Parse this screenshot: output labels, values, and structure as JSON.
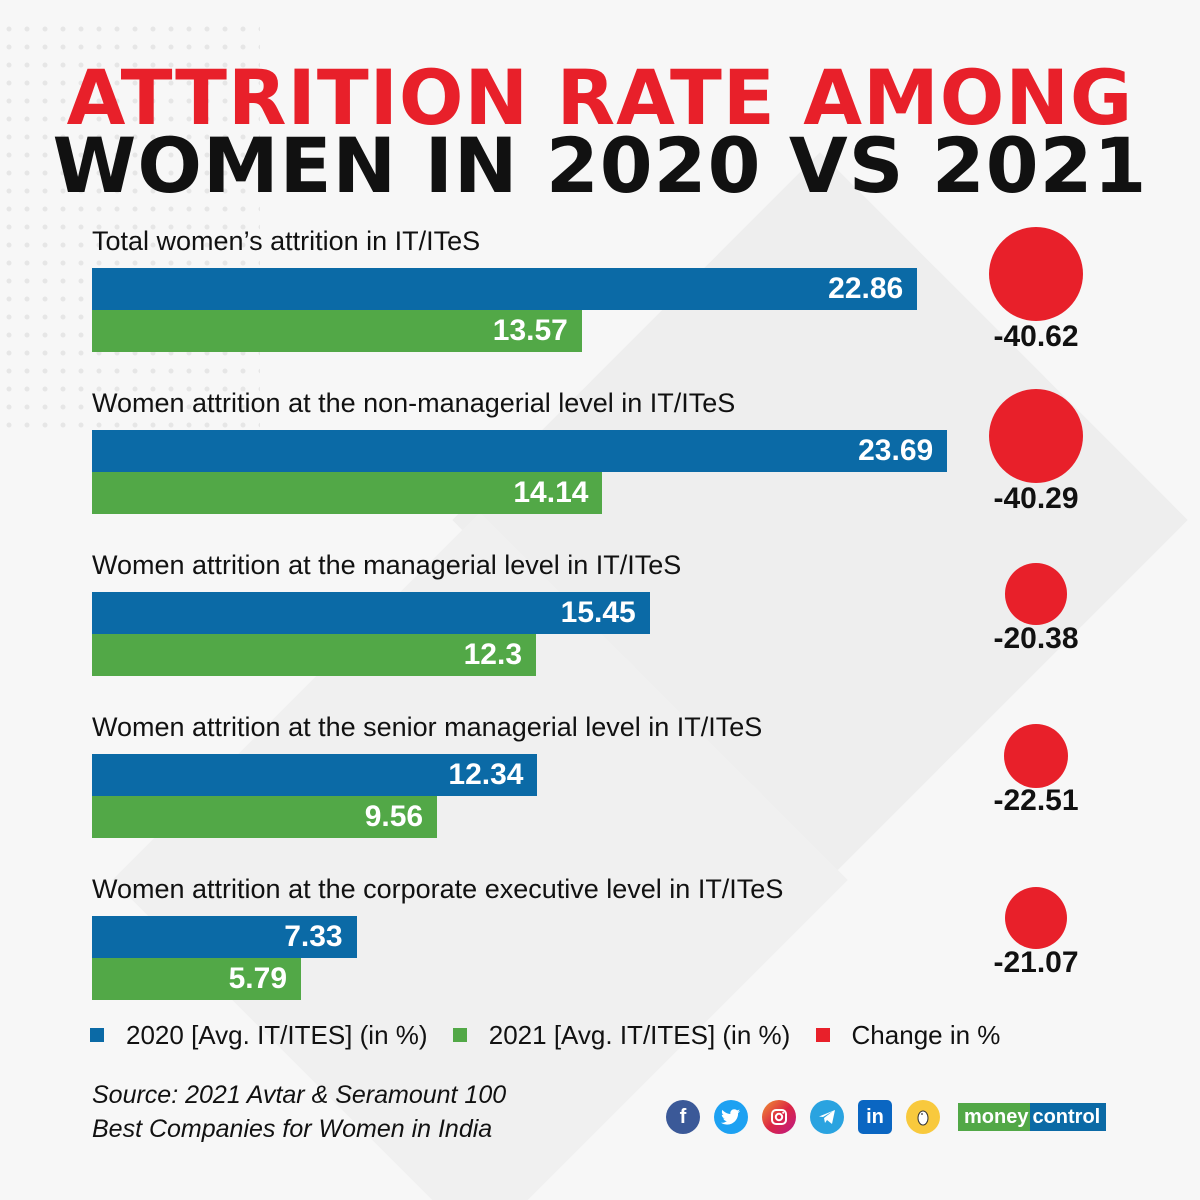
{
  "header": {
    "title_line1": "ATTRITION RATE AMONG",
    "title_line2": "WOMEN IN 2020 VS 2021"
  },
  "colors": {
    "series_2020": "#0b6aa6",
    "series_2021": "#52a847",
    "change": "#e8202a",
    "title_red": "#e8202a"
  },
  "chart_data": {
    "type": "bar",
    "orientation": "horizontal",
    "title": "ATTRITION RATE AMONG WOMEN IN 2020 VS 2021",
    "categories": [
      "Total women’s attrition in IT/ITeS",
      "Women attrition at the non-managerial level in IT/ITeS",
      "Women attrition at the managerial level in IT/ITeS",
      "Women attrition at the senior managerial level in IT/ITeS",
      "Women attrition at the corporate executive level in IT/ITeS"
    ],
    "series": [
      {
        "name": "2020  [Avg. IT/ITES] (in %)",
        "values": [
          22.86,
          23.69,
          15.45,
          12.34,
          7.33
        ]
      },
      {
        "name": "2021  [Avg. IT/ITES] (in %)",
        "values": [
          13.57,
          14.14,
          12.3,
          9.56,
          5.79
        ]
      },
      {
        "name": "Change in %",
        "values": [
          -40.62,
          -40.29,
          -20.38,
          -22.51,
          -21.07
        ]
      }
    ],
    "value_labels": {
      "s2020": [
        "22.86",
        "23.69",
        "15.45",
        "12.34",
        "7.33"
      ],
      "s2021": [
        "13.57",
        "14.14",
        "12.3",
        "9.56",
        "5.79"
      ],
      "change": [
        "-40.62",
        "-40.29",
        "-20.38",
        "-22.51",
        "-21.07"
      ]
    },
    "xlabel": "",
    "ylabel": "",
    "xlim": [
      0,
      24
    ],
    "grid": false,
    "legend_position": "bottom"
  },
  "legend": [
    {
      "label": "2020  [Avg. IT/ITES] (in %)",
      "color": "#0b6aa6"
    },
    {
      "label": "2021  [Avg. IT/ITES] (in %)",
      "color": "#52a847"
    },
    {
      "label": "Change in %",
      "color": "#e8202a"
    }
  ],
  "footer": {
    "source_line1": "Source: 2021 Avtar & Seramount 100",
    "source_line2": "Best Companies for Women in India",
    "social_icons": [
      "facebook-icon",
      "twitter-icon",
      "instagram-icon",
      "telegram-icon",
      "linkedin-icon",
      "koo-icon"
    ],
    "brand_part1": "money",
    "brand_part2": "control"
  }
}
